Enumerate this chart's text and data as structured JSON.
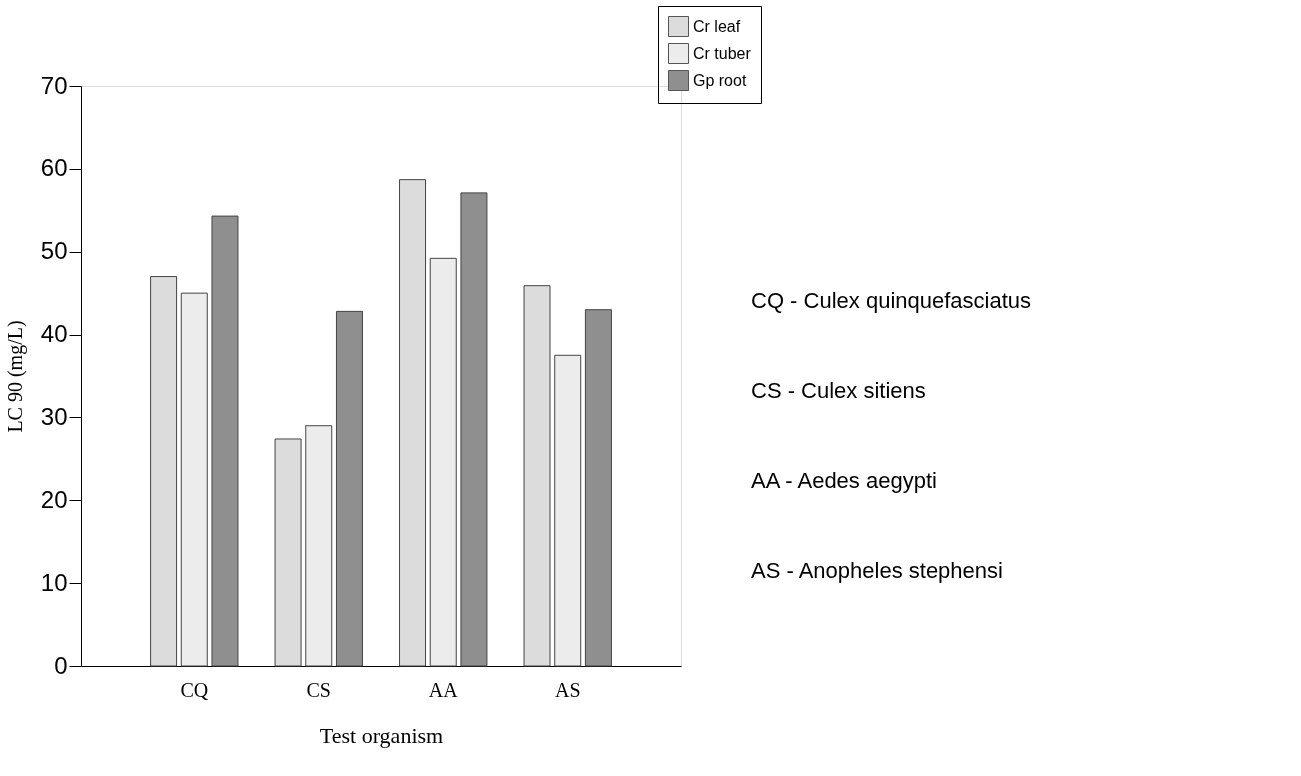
{
  "chart_data": {
    "type": "bar",
    "xlabel": "Test organism",
    "ylabel": "LC 90 (mg/L)",
    "categories": [
      "CQ",
      "CS",
      "AA",
      "AS"
    ],
    "series": [
      {
        "name": "Cr leaf",
        "color": "#dcdcdc",
        "values": [
          47.0,
          27.4,
          58.7,
          45.9
        ]
      },
      {
        "name": "Cr tuber",
        "color": "#ececec",
        "values": [
          45.0,
          29.0,
          49.2,
          37.5
        ]
      },
      {
        "name": "Gp root",
        "color": "#8f8f8f",
        "values": [
          54.3,
          42.8,
          57.1,
          43.0
        ]
      }
    ],
    "ylim": [
      0,
      70
    ],
    "yticks": [
      0,
      10,
      20,
      30,
      40,
      50,
      60,
      70
    ],
    "grid": false,
    "legend": "top right",
    "annotations": [
      "CQ - Culex quinquefasciatus",
      "CS - Culex sitiens",
      "AA - Aedes aegypti",
      "AS - Anopheles stephensi"
    ]
  }
}
